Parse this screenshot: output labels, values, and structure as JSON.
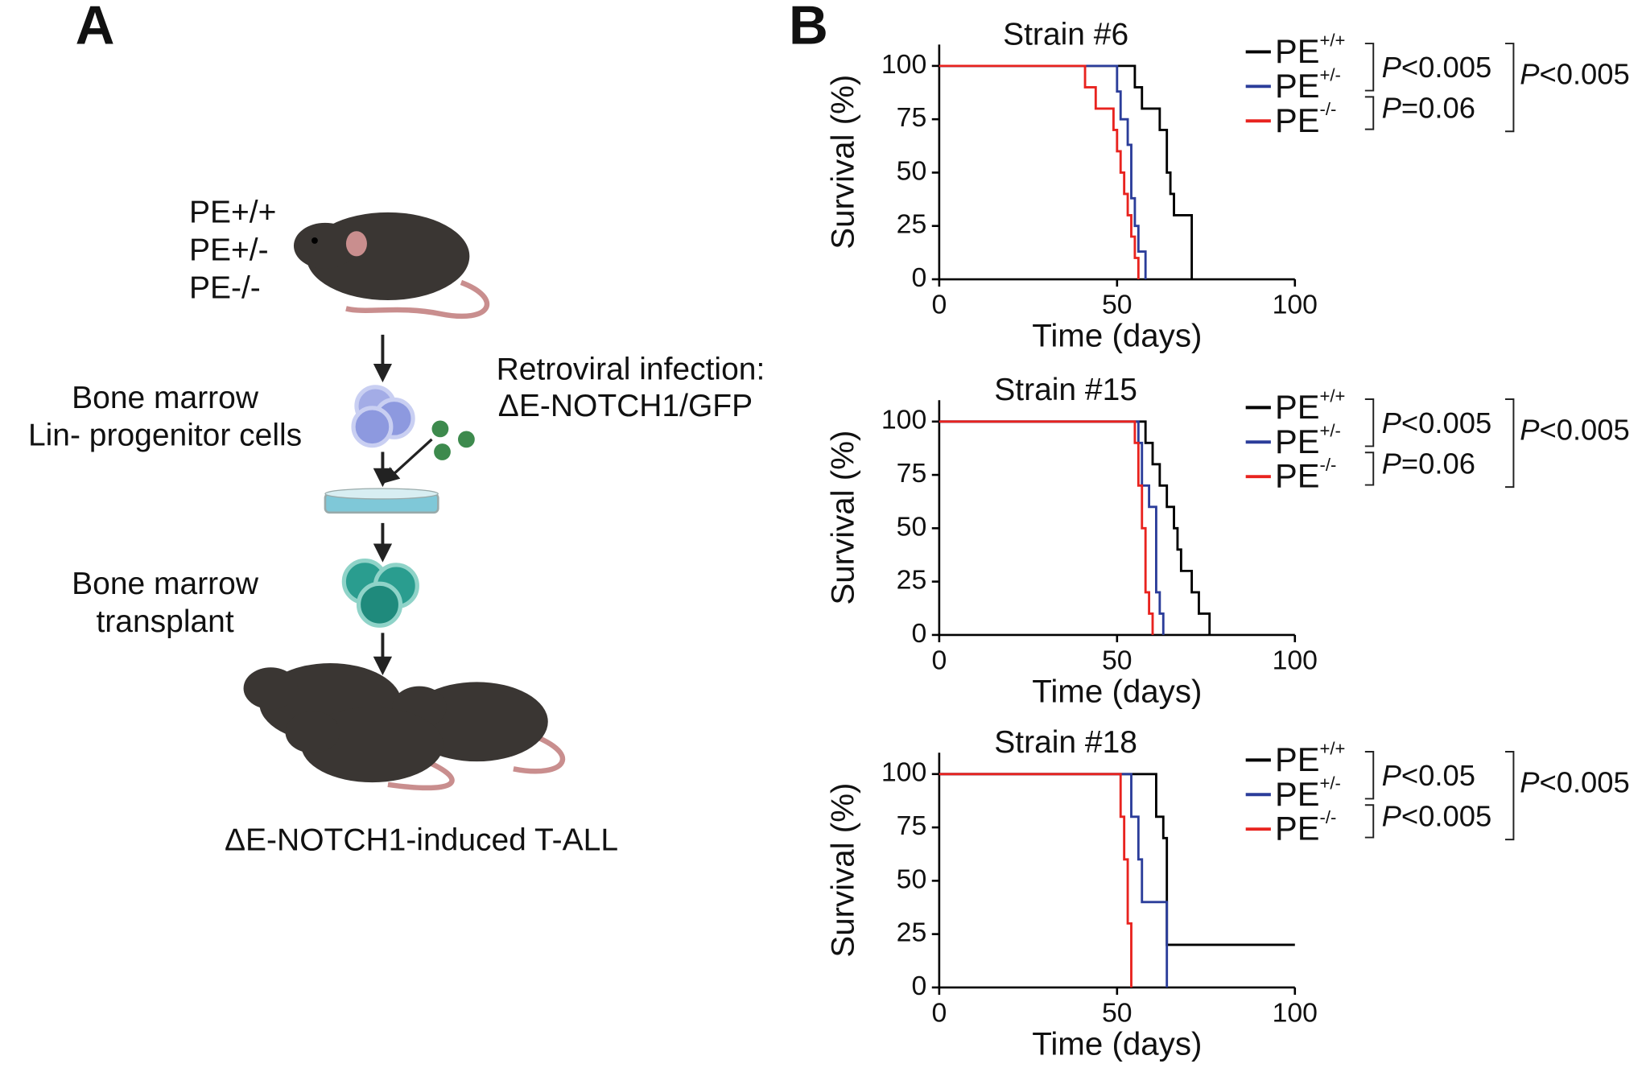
{
  "panels": [
    "A",
    "B"
  ],
  "diagram": {
    "genotypes": [
      "PE+/+",
      "PE+/-",
      "PE-/-"
    ],
    "progenitors": [
      "Bone marrow",
      "Lin- progenitor cells"
    ],
    "infection": [
      "Retroviral infection:",
      "ΔE-NOTCH1/GFP"
    ],
    "transplant": [
      "Bone marrow",
      "transplant"
    ],
    "outcome": "ΔE-NOTCH1-induced T-ALL"
  },
  "chart_data": [
    {
      "type": "step",
      "title": "Strain #6",
      "x_label": "Time (days)",
      "y_label": "Survival (%)",
      "xlim": [
        0,
        100
      ],
      "xticks": [
        0,
        50,
        100
      ],
      "ylim": [
        0,
        110
      ],
      "yticks": [
        0,
        25,
        50,
        75,
        100
      ],
      "annotations": [
        "P<0.005",
        "P=0.06",
        "P<0.005"
      ],
      "series": [
        {
          "name": "PE+/+",
          "color": "#000000",
          "x": [
            0,
            55,
            57,
            62,
            64,
            65,
            66,
            71
          ],
          "values": [
            100,
            90,
            80,
            70,
            50,
            40,
            30,
            0
          ]
        },
        {
          "name": "PE+/-",
          "color": "#2b3d9a",
          "x": [
            0,
            50,
            51,
            53,
            54,
            55,
            56,
            58
          ],
          "values": [
            100,
            88,
            75,
            63,
            38,
            25,
            13,
            0
          ]
        },
        {
          "name": "PE-/-",
          "color": "#e8231f",
          "x": [
            0,
            41,
            44,
            49,
            50,
            51,
            52,
            53,
            54,
            55,
            56
          ],
          "values": [
            100,
            90,
            80,
            70,
            60,
            50,
            40,
            30,
            20,
            10,
            0
          ]
        }
      ]
    },
    {
      "type": "step",
      "title": "Strain #15",
      "x_label": "Time (days)",
      "y_label": "Survival (%)",
      "xlim": [
        0,
        100
      ],
      "xticks": [
        0,
        50,
        100
      ],
      "ylim": [
        0,
        110
      ],
      "yticks": [
        0,
        25,
        50,
        75,
        100
      ],
      "annotations": [
        "P<0.005",
        "P=0.06",
        "P<0.005"
      ],
      "series": [
        {
          "name": "PE+/+",
          "color": "#000000",
          "x": [
            0,
            58,
            60,
            62,
            64,
            66,
            67,
            68,
            71,
            73,
            76
          ],
          "values": [
            100,
            90,
            80,
            70,
            60,
            50,
            40,
            30,
            20,
            10,
            0
          ]
        },
        {
          "name": "PE+/-",
          "color": "#2b3d9a",
          "x": [
            0,
            56,
            57,
            59,
            61,
            62,
            63
          ],
          "values": [
            100,
            90,
            70,
            60,
            20,
            10,
            0
          ]
        },
        {
          "name": "PE-/-",
          "color": "#e8231f",
          "x": [
            0,
            55,
            56,
            57,
            58,
            59,
            60
          ],
          "values": [
            100,
            90,
            70,
            50,
            20,
            10,
            0
          ]
        }
      ]
    },
    {
      "type": "step",
      "title": "Strain #18",
      "x_label": "Time (days)",
      "y_label": "Survival (%)",
      "xlim": [
        0,
        100
      ],
      "xticks": [
        0,
        50,
        100
      ],
      "ylim": [
        0,
        110
      ],
      "yticks": [
        0,
        25,
        50,
        75,
        100
      ],
      "annotations": [
        "P<0.05",
        "P<0.005",
        "P<0.005"
      ],
      "series": [
        {
          "name": "PE+/+",
          "color": "#000000",
          "x": [
            0,
            61,
            63,
            64,
            100
          ],
          "values": [
            100,
            80,
            70,
            20,
            20
          ]
        },
        {
          "name": "PE+/-",
          "color": "#2b3d9a",
          "x": [
            0,
            54,
            56,
            57,
            64
          ],
          "values": [
            100,
            80,
            60,
            40,
            0
          ]
        },
        {
          "name": "PE-/-",
          "color": "#e8231f",
          "x": [
            0,
            51,
            52,
            53,
            54
          ],
          "values": [
            100,
            80,
            60,
            30,
            0
          ]
        }
      ]
    }
  ]
}
